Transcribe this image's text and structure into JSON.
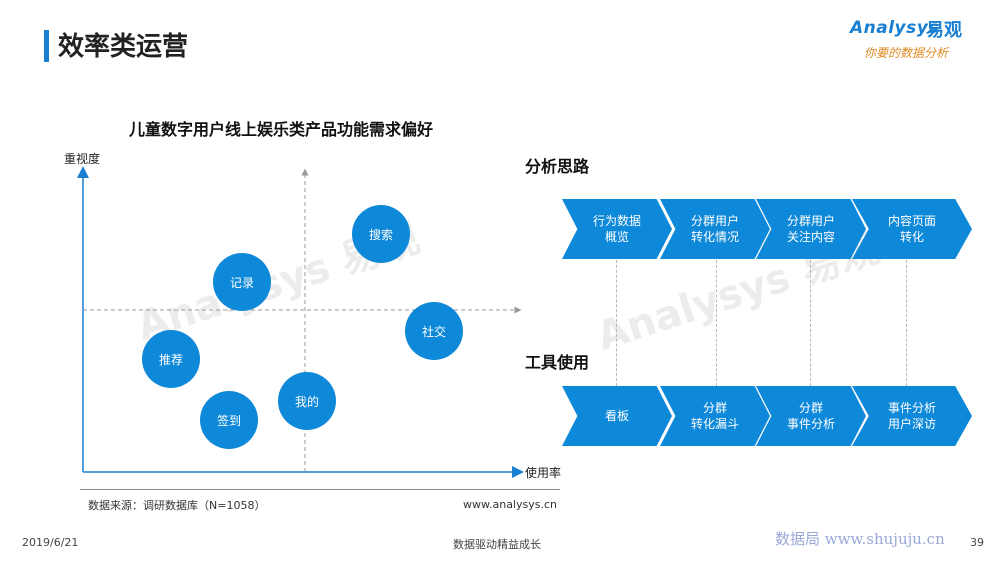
{
  "header": {
    "title": "效率类运营",
    "logo_en": "Analysys",
    "logo_cn": "易观",
    "logo_slogan": "你要的数据分析"
  },
  "chart": {
    "title": "儿童数字用户线上娱乐类产品功能需求偏好",
    "y_axis_label": "重视度",
    "x_axis_label": "使用率",
    "bubbles": [
      {
        "label": "搜索"
      },
      {
        "label": "记录"
      },
      {
        "label": "社交"
      },
      {
        "label": "推荐"
      },
      {
        "label": "我的"
      },
      {
        "label": "签到"
      }
    ],
    "source": "数据来源：调研数据库（N=1058）",
    "site": "www.analysys.cn"
  },
  "chart_data": {
    "type": "scatter",
    "title": "儿童数字用户线上娱乐类产品功能需求偏好",
    "xlabel": "使用率",
    "ylabel": "重视度",
    "points": [
      {
        "label": "搜索"
      },
      {
        "label": "记录"
      },
      {
        "label": "社交"
      },
      {
        "label": "推荐"
      },
      {
        "label": "我的"
      },
      {
        "label": "签到"
      }
    ]
  },
  "analysis": {
    "label": "分析思路",
    "steps": [
      {
        "line1": "行为数据",
        "line2": "概览"
      },
      {
        "line1": "分群用户",
        "line2": "转化情况"
      },
      {
        "line1": "分群用户",
        "line2": "关注内容"
      },
      {
        "line1": "内容页面",
        "line2": "转化"
      }
    ]
  },
  "tools": {
    "label": "工具使用",
    "steps": [
      {
        "line1": "看板",
        "line2": ""
      },
      {
        "line1": "分群",
        "line2": "转化漏斗"
      },
      {
        "line1": "分群",
        "line2": "事件分析"
      },
      {
        "line1": "事件分析",
        "line2": "用户深访"
      }
    ]
  },
  "footer": {
    "date": "2019/6/21",
    "center": "数据驱动精益成长",
    "watermark": "数据局 www.shujuju.cn",
    "page": "39"
  },
  "colors": {
    "accent": "#0e88d8",
    "slogan": "#e08a1e"
  }
}
